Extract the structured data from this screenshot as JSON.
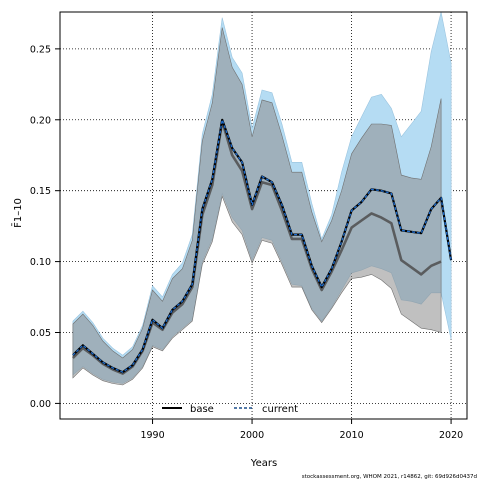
{
  "chart_data": {
    "type": "line",
    "xlabel": "Years",
    "ylabel": "F̄1–10",
    "xlim": [
      1980.7,
      2021.6
    ],
    "ylim": [
      -0.011,
      0.276
    ],
    "xticks": [
      1990,
      2000,
      2010,
      2020
    ],
    "yticks": [
      0.0,
      0.05,
      0.1,
      0.15,
      0.2,
      0.25
    ],
    "ytick_labels": [
      "0.00",
      "0.05",
      "0.10",
      "0.15",
      "0.20",
      "0.25"
    ],
    "grid": true,
    "legend_position": "bottom-left",
    "footer": "stockassessment.org, WHOM 2021, r14862, git: 69d926d0437d",
    "series": [
      {
        "name": "base",
        "color": "#000000",
        "band_color": "#8c8c8c",
        "x": [
          1982,
          1983,
          1984,
          1985,
          1986,
          1987,
          1988,
          1989,
          1990,
          1991,
          1992,
          1993,
          1994,
          1995,
          1996,
          1997,
          1998,
          1999,
          2000,
          2001,
          2002,
          2003,
          2004,
          2005,
          2006,
          2007,
          2008,
          2009,
          2010,
          2011,
          2012,
          2013,
          2014,
          2015,
          2016,
          2017,
          2018,
          2019
        ],
        "values": [
          0.032,
          0.039,
          0.034,
          0.028,
          0.024,
          0.021,
          0.026,
          0.037,
          0.057,
          0.052,
          0.064,
          0.07,
          0.082,
          0.133,
          0.154,
          0.199,
          0.175,
          0.164,
          0.137,
          0.156,
          0.154,
          0.136,
          0.116,
          0.116,
          0.095,
          0.08,
          0.093,
          0.108,
          0.124,
          0.129,
          0.134,
          0.131,
          0.127,
          0.101,
          0.096,
          0.091,
          0.097,
          0.1
        ],
        "lower": [
          0.018,
          0.025,
          0.02,
          0.016,
          0.014,
          0.013,
          0.017,
          0.025,
          0.04,
          0.037,
          0.046,
          0.052,
          0.058,
          0.098,
          0.114,
          0.146,
          0.128,
          0.119,
          0.099,
          0.115,
          0.113,
          0.098,
          0.082,
          0.082,
          0.066,
          0.057,
          0.067,
          0.078,
          0.088,
          0.089,
          0.091,
          0.087,
          0.081,
          0.063,
          0.058,
          0.053,
          0.052,
          0.05
        ],
        "upper": [
          0.056,
          0.063,
          0.055,
          0.044,
          0.037,
          0.032,
          0.038,
          0.053,
          0.08,
          0.072,
          0.088,
          0.095,
          0.115,
          0.185,
          0.212,
          0.265,
          0.237,
          0.225,
          0.188,
          0.214,
          0.212,
          0.189,
          0.163,
          0.163,
          0.135,
          0.114,
          0.129,
          0.15,
          0.176,
          0.187,
          0.197,
          0.197,
          0.196,
          0.161,
          0.159,
          0.158,
          0.181,
          0.215
        ]
      },
      {
        "name": "current",
        "color": "#1a4f8c",
        "band_color": "#b5dcf3",
        "x": [
          1982,
          1983,
          1984,
          1985,
          1986,
          1987,
          1988,
          1989,
          1990,
          1991,
          1992,
          1993,
          1994,
          1995,
          1996,
          1997,
          1998,
          1999,
          2000,
          2001,
          2002,
          2003,
          2004,
          2005,
          2006,
          2007,
          2008,
          2009,
          2010,
          2011,
          2012,
          2013,
          2014,
          2015,
          2016,
          2017,
          2018,
          2019,
          2020
        ],
        "values": [
          0.034,
          0.041,
          0.035,
          0.029,
          0.025,
          0.022,
          0.027,
          0.038,
          0.059,
          0.053,
          0.066,
          0.072,
          0.084,
          0.137,
          0.158,
          0.2,
          0.18,
          0.17,
          0.14,
          0.16,
          0.156,
          0.14,
          0.119,
          0.119,
          0.097,
          0.082,
          0.095,
          0.114,
          0.136,
          0.142,
          0.151,
          0.15,
          0.148,
          0.122,
          0.121,
          0.12,
          0.137,
          0.145,
          0.101
        ],
        "lower": [
          0.02,
          0.026,
          0.021,
          0.017,
          0.015,
          0.014,
          0.018,
          0.026,
          0.041,
          0.038,
          0.047,
          0.053,
          0.059,
          0.1,
          0.116,
          0.148,
          0.131,
          0.122,
          0.101,
          0.117,
          0.115,
          0.1,
          0.084,
          0.083,
          0.067,
          0.058,
          0.068,
          0.08,
          0.092,
          0.094,
          0.097,
          0.095,
          0.092,
          0.073,
          0.072,
          0.07,
          0.078,
          0.078,
          0.045
        ],
        "upper": [
          0.058,
          0.065,
          0.057,
          0.046,
          0.039,
          0.034,
          0.04,
          0.055,
          0.083,
          0.075,
          0.091,
          0.099,
          0.119,
          0.19,
          0.218,
          0.272,
          0.244,
          0.233,
          0.194,
          0.221,
          0.219,
          0.197,
          0.17,
          0.17,
          0.141,
          0.116,
          0.133,
          0.163,
          0.188,
          0.202,
          0.216,
          0.218,
          0.208,
          0.188,
          0.197,
          0.206,
          0.248,
          0.276,
          0.24
        ]
      }
    ]
  }
}
